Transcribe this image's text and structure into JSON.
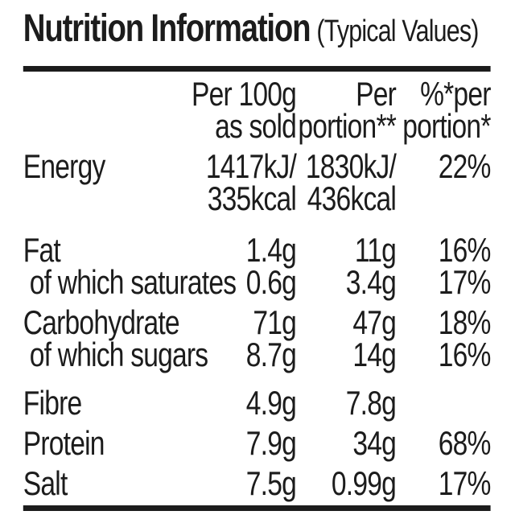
{
  "title": {
    "main": "Nutrition Information",
    "qualifier": "(Typical Values)"
  },
  "colors": {
    "text": "#1c1c1c",
    "rule": "#1c1c1c",
    "background": "#ffffff"
  },
  "table": {
    "header": {
      "per_100g": [
        "Per 100g",
        "as sold"
      ],
      "per_portion": [
        "Per",
        "portion**"
      ],
      "percent": [
        "%*per",
        "portion*"
      ]
    },
    "rows": [
      {
        "label": "Energy",
        "per_100g_line1": "1417kJ/",
        "per_100g_line2": "335kcal",
        "per_portion_line1": "1830kJ/",
        "per_portion_line2": "436kcal",
        "percent": "22%"
      },
      {
        "label": "Fat",
        "per_100g": "1.4g",
        "per_portion": "11g",
        "percent": "16%"
      },
      {
        "label": "of which saturates",
        "per_100g": "0.6g",
        "per_portion": "3.4g",
        "percent": "17%"
      },
      {
        "label": "Carbohydrate",
        "per_100g": "71g",
        "per_portion": "47g",
        "percent": "18%"
      },
      {
        "label": "of which sugars",
        "per_100g": "8.7g",
        "per_portion": "14g",
        "percent": "16%"
      },
      {
        "label": "Fibre",
        "per_100g": "4.9g",
        "per_portion": "7.8g",
        "percent": ""
      },
      {
        "label": "Protein",
        "per_100g": "7.9g",
        "per_portion": "34g",
        "percent": "68%"
      },
      {
        "label": "Salt",
        "per_100g": "7.5g",
        "per_portion": "0.99g",
        "percent": "17%"
      }
    ]
  }
}
